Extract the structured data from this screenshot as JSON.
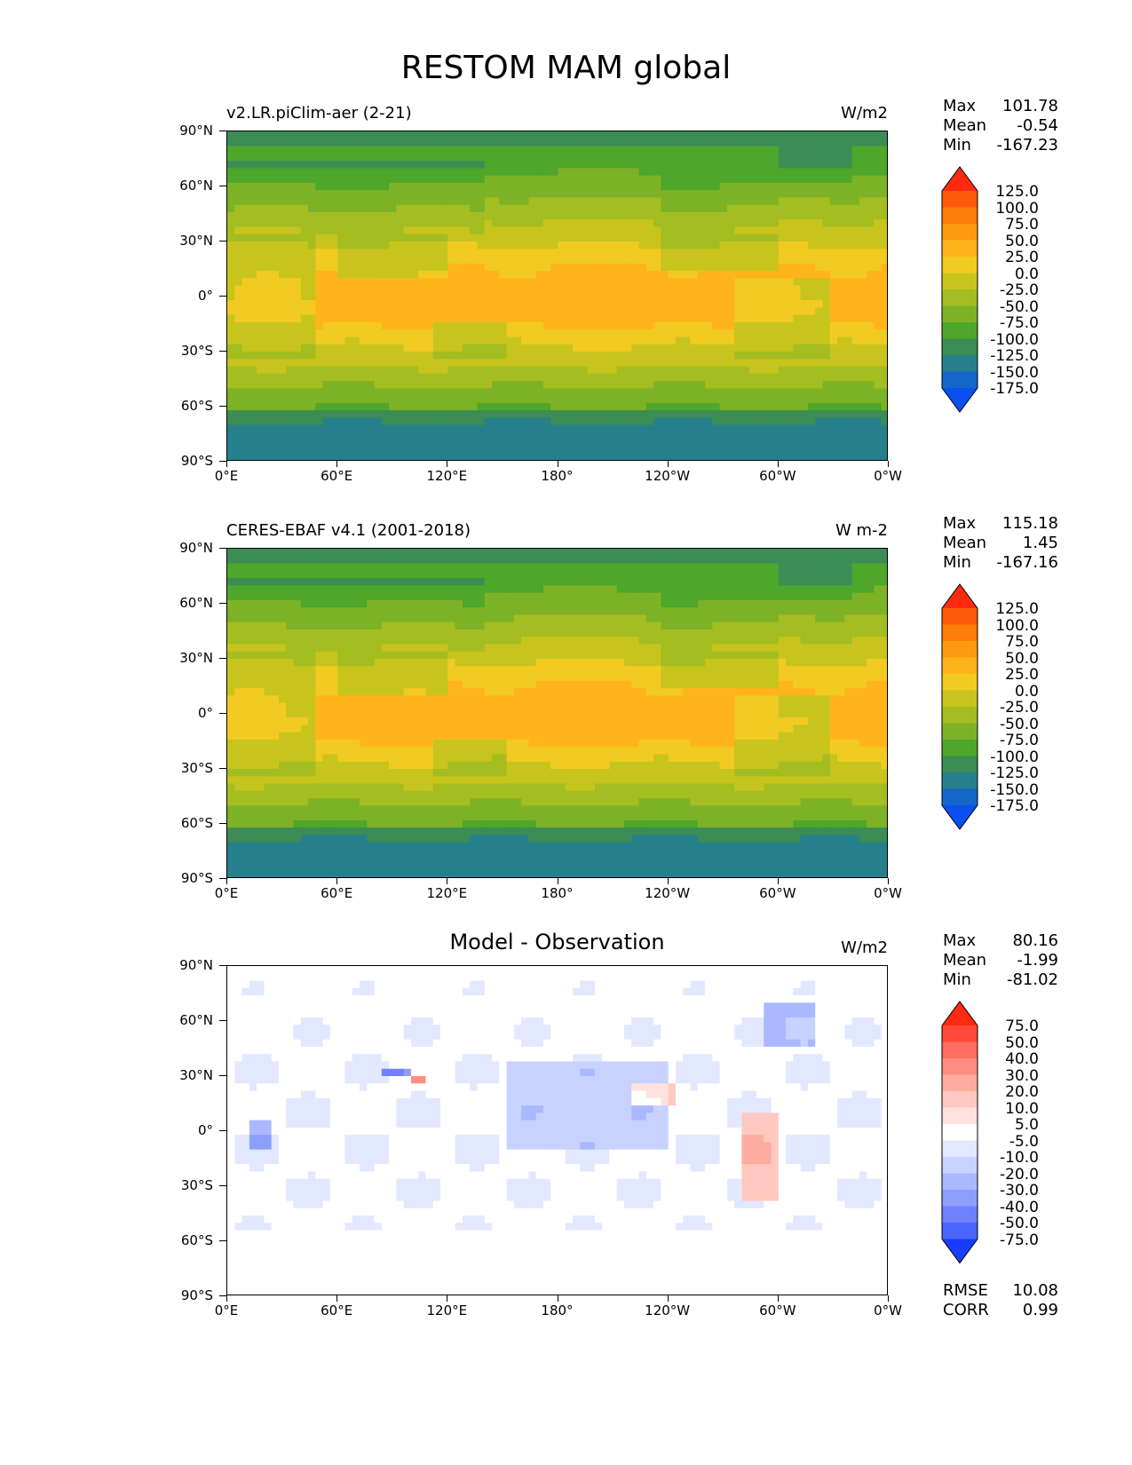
{
  "figure": {
    "title": "RESTOM MAM global"
  },
  "axes": {
    "y_ticks": [
      "90°N",
      "60°N",
      "30°N",
      "0°",
      "30°S",
      "60°S",
      "90°S"
    ],
    "x_ticks": [
      "0°E",
      "60°E",
      "120°E",
      "180°",
      "120°W",
      "60°W",
      "0°W"
    ]
  },
  "chart_data": [
    {
      "type": "heatmap",
      "title": "v2.LR.piClim-aer (2-21)",
      "units": "W/m2",
      "stats": {
        "max_label": "Max",
        "max": "101.78",
        "mean_label": "Mean",
        "mean": "-0.54",
        "min_label": "Min",
        "min": "-167.23"
      },
      "colorbar": {
        "levels": [
          "125.0",
          "100.0",
          "75.0",
          "50.0",
          "25.0",
          "0.0",
          "-25.0",
          "-50.0",
          "-75.0",
          "-100.0",
          "-125.0",
          "-150.0",
          "-175.0"
        ],
        "colors": [
          "#ff2a0f",
          "#ff5a0a",
          "#ff7d0a",
          "#ff9a10",
          "#ffb41c",
          "#f2cb22",
          "#c8c41e",
          "#a4bd20",
          "#7db226",
          "#4ea62a",
          "#3c8c55",
          "#26808c",
          "#1466c8",
          "#0a50f0"
        ]
      }
    },
    {
      "type": "heatmap",
      "title": "CERES-EBAF v4.1 (2001-2018)",
      "units": "W m-2",
      "stats": {
        "max_label": "Max",
        "max": "115.18",
        "mean_label": "Mean",
        "mean": "1.45",
        "min_label": "Min",
        "min": "-167.16"
      },
      "colorbar": {
        "levels": [
          "125.0",
          "100.0",
          "75.0",
          "50.0",
          "25.0",
          "0.0",
          "-25.0",
          "-50.0",
          "-75.0",
          "-100.0",
          "-125.0",
          "-150.0",
          "-175.0"
        ],
        "colors": [
          "#ff2a0f",
          "#ff5a0a",
          "#ff7d0a",
          "#ff9a10",
          "#ffb41c",
          "#f2cb22",
          "#c8c41e",
          "#a4bd20",
          "#7db226",
          "#4ea62a",
          "#3c8c55",
          "#26808c",
          "#1466c8",
          "#0a50f0"
        ]
      }
    },
    {
      "type": "heatmap",
      "title": "Model - Observation",
      "units": "W/m2",
      "stats": {
        "max_label": "Max",
        "max": "80.16",
        "mean_label": "Mean",
        "mean": "-1.99",
        "min_label": "Min",
        "min": "-81.02"
      },
      "colorbar": {
        "levels": [
          "75.0",
          "50.0",
          "40.0",
          "30.0",
          "20.0",
          "10.0",
          "5.0",
          "-5.0",
          "-10.0",
          "-20.0",
          "-30.0",
          "-40.0",
          "-50.0",
          "-75.0"
        ],
        "colors": [
          "#ff2a0f",
          "#ff4a3a",
          "#ff6e5e",
          "#ff8e80",
          "#ffaca0",
          "#ffc8c0",
          "#ffe2de",
          "#ffffff",
          "#e2e8ff",
          "#c8d2ff",
          "#aab8ff",
          "#8e9eff",
          "#6e82ff",
          "#4a64ff",
          "#1a3cff"
        ]
      },
      "metrics": {
        "rmse_label": "RMSE",
        "rmse": "10.08",
        "corr_label": "CORR",
        "corr": "0.99"
      }
    }
  ]
}
